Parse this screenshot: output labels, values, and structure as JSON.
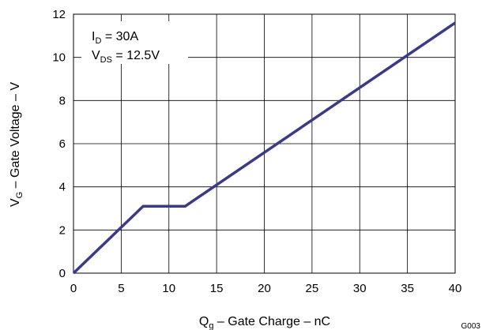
{
  "chart_data": {
    "type": "line",
    "xlabel": {
      "main": "Q",
      "sub": "g",
      "rest": " – Gate Charge – nC"
    },
    "ylabel": {
      "main": "V",
      "sub": "G",
      "rest": " – Gate Voltage – V"
    },
    "xlim": [
      0,
      40
    ],
    "ylim": [
      0,
      12
    ],
    "xticks": [
      0,
      5,
      10,
      15,
      20,
      25,
      30,
      35,
      40
    ],
    "yticks": [
      0,
      2,
      4,
      6,
      8,
      10,
      12
    ],
    "grid": true,
    "annotation": [
      {
        "main": "I",
        "sub": "D",
        "rest": " = 30A"
      },
      {
        "main": "V",
        "sub": "DS",
        "rest": " = 12.5V"
      }
    ],
    "figure_id": "G003",
    "series": [
      {
        "color": "#3a3a8c",
        "x": [
          0,
          7.3,
          11.7,
          40
        ],
        "y": [
          0,
          3.1,
          3.1,
          11.6
        ]
      }
    ]
  }
}
